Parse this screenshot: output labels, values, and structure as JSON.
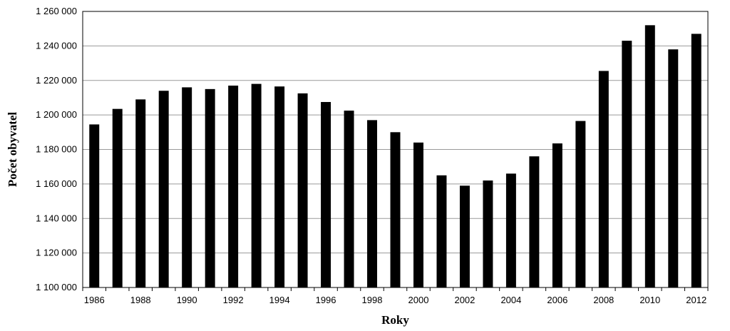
{
  "chart_data": {
    "type": "bar",
    "categories": [
      1986,
      1987,
      1988,
      1989,
      1990,
      1991,
      1992,
      1993,
      1994,
      1995,
      1996,
      1997,
      1998,
      1999,
      2000,
      2001,
      2002,
      2003,
      2004,
      2005,
      2006,
      2007,
      2008,
      2009,
      2010,
      2011,
      2012
    ],
    "values": [
      1194500,
      1203500,
      1209000,
      1214000,
      1216000,
      1215000,
      1217000,
      1218000,
      1216500,
      1212500,
      1207500,
      1202500,
      1197000,
      1190000,
      1184000,
      1165000,
      1159000,
      1162000,
      1166000,
      1176000,
      1183500,
      1196500,
      1225500,
      1243000,
      1252000,
      1238000,
      1247000
    ],
    "x_tick_labels": [
      "1986",
      "1988",
      "1990",
      "1992",
      "1994",
      "1996",
      "1998",
      "2000",
      "2002",
      "2004",
      "2006",
      "2008",
      "2010",
      "2012"
    ],
    "y_tick_labels": [
      "1 100 000",
      "1 120 000",
      "1 140 000",
      "1 160 000",
      "1 180 000",
      "1 200 000",
      "1 220 000",
      "1 240 000",
      "1 260 000"
    ],
    "ylim": [
      1100000,
      1260000
    ],
    "ytick_step": 20000,
    "xlabel": "Roky",
    "ylabel": "Počet obyvatel",
    "grid": "horizontal",
    "legend": "none",
    "colors": {
      "bar": "#000000",
      "grid": "#9a9a9a",
      "axis": "#000000"
    }
  }
}
